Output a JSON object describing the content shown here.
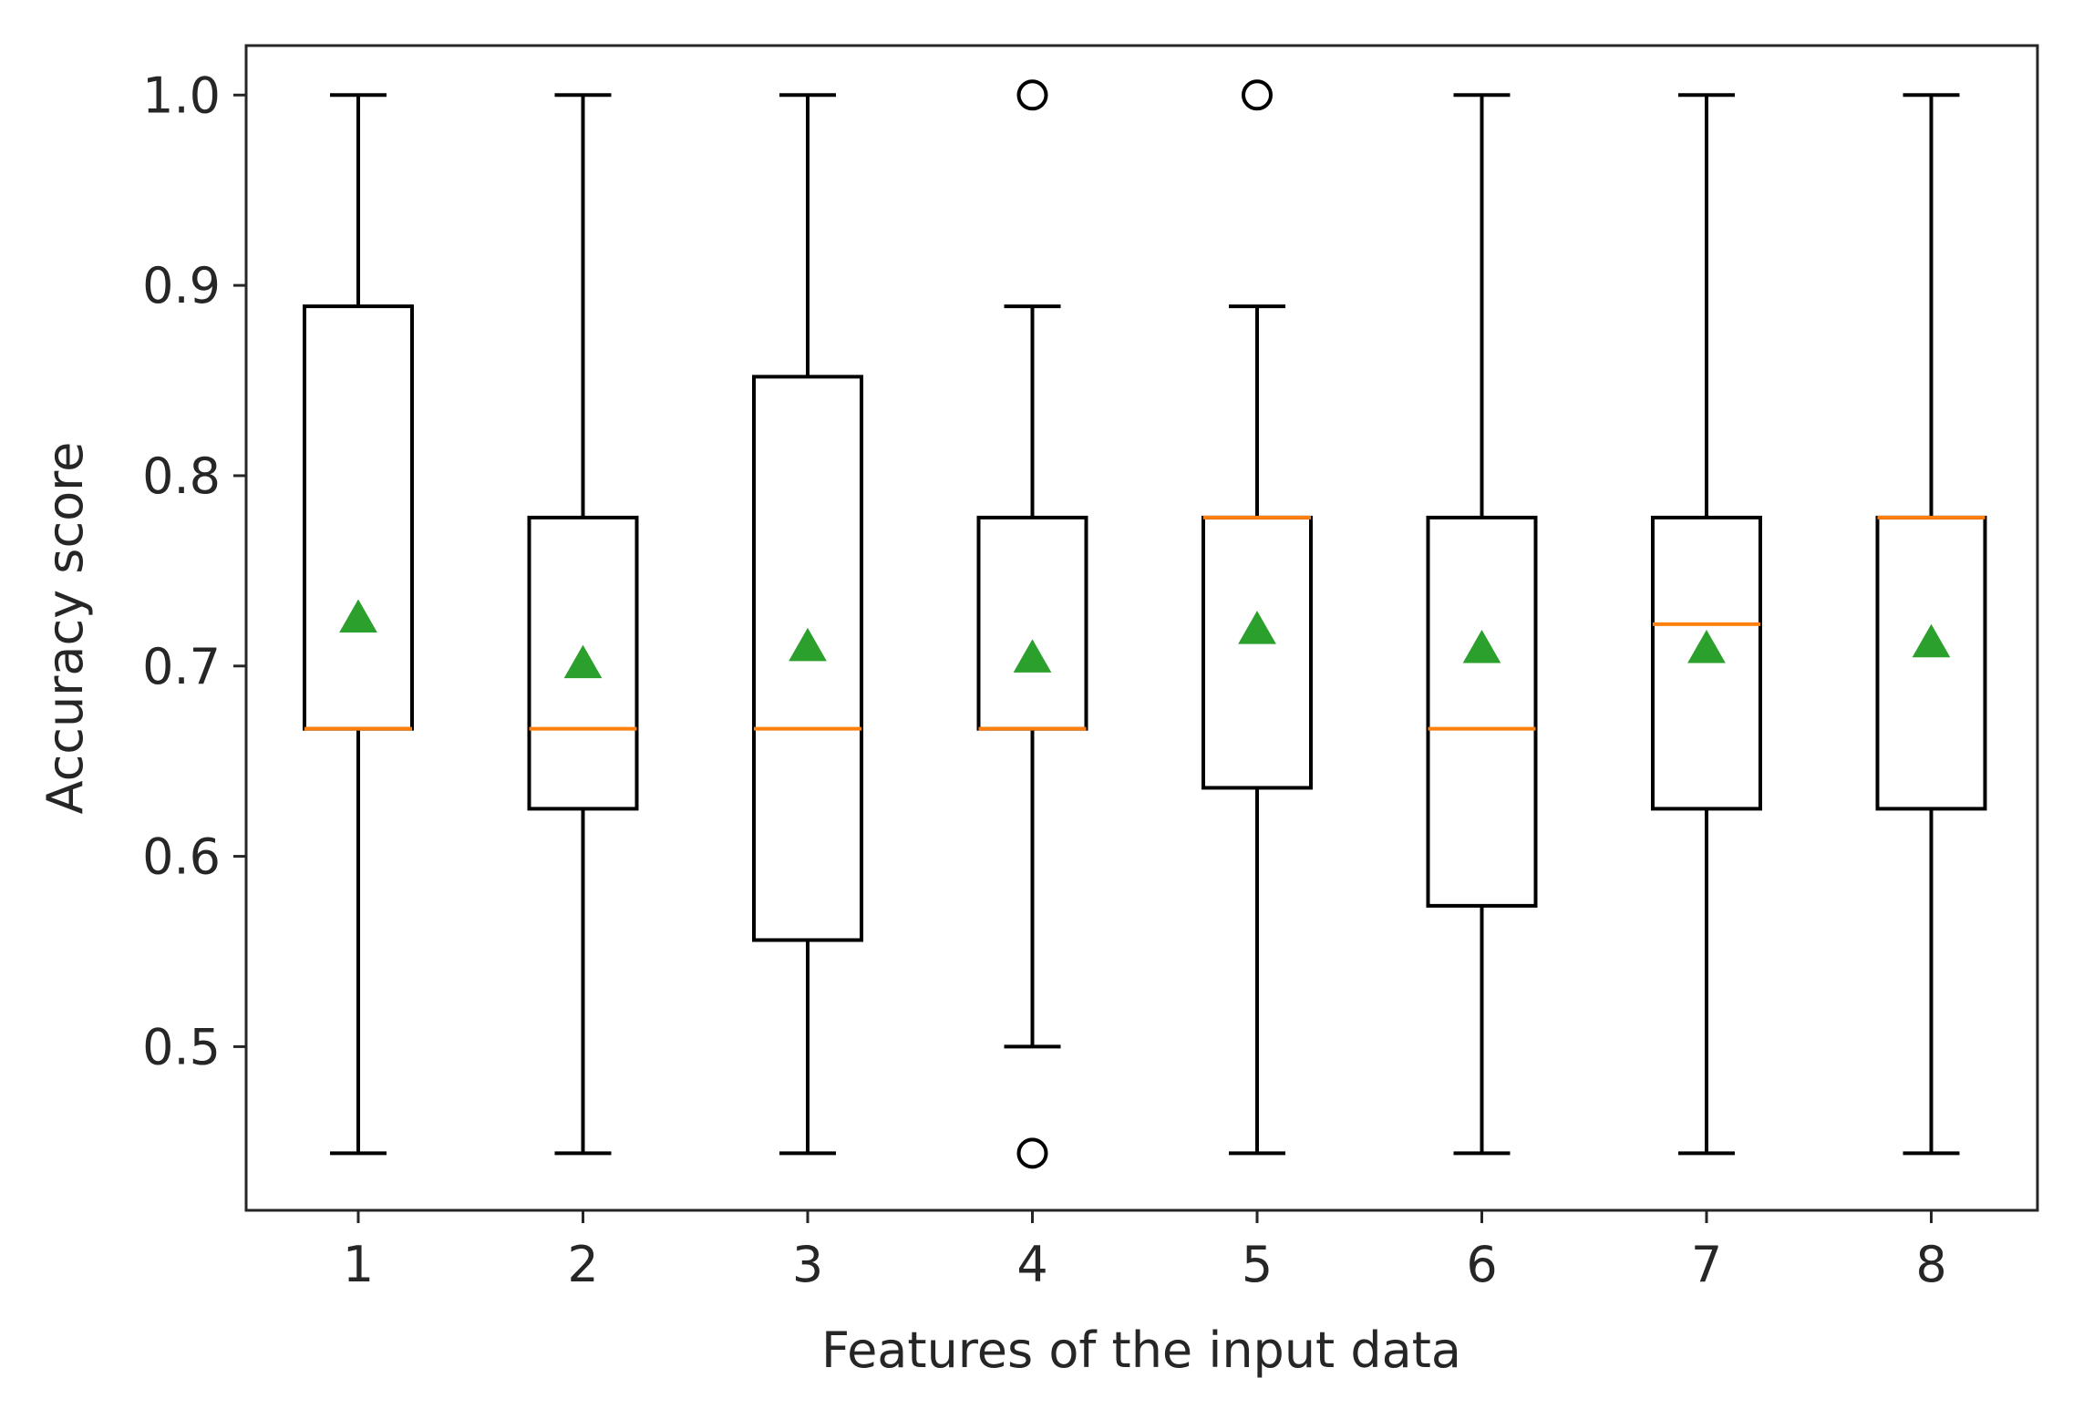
{
  "chart_data": {
    "type": "box",
    "title": "",
    "xlabel": "Features of the input data",
    "ylabel": "Accuracy score",
    "categories": [
      "1",
      "2",
      "3",
      "4",
      "5",
      "6",
      "7",
      "8"
    ],
    "ylim": [
      0.414,
      1.026
    ],
    "yticks": [
      0.5,
      0.6,
      0.7,
      0.8,
      0.9,
      1.0
    ],
    "ytick_labels": [
      "0.5",
      "0.6",
      "0.7",
      "0.8",
      "0.9",
      "1.0"
    ],
    "grid": false,
    "boxes": [
      {
        "label": "1",
        "whislo": 0.444,
        "q1": 0.667,
        "med": 0.667,
        "q3": 0.889,
        "whishi": 1.0,
        "mean": 0.725,
        "fliers": []
      },
      {
        "label": "2",
        "whislo": 0.444,
        "q1": 0.625,
        "med": 0.667,
        "q3": 0.778,
        "whishi": 1.0,
        "mean": 0.701,
        "fliers": []
      },
      {
        "label": "3",
        "whislo": 0.444,
        "q1": 0.556,
        "med": 0.667,
        "q3": 0.852,
        "whishi": 1.0,
        "mean": 0.71,
        "fliers": []
      },
      {
        "label": "4",
        "whislo": 0.5,
        "q1": 0.667,
        "med": 0.667,
        "q3": 0.778,
        "whishi": 0.889,
        "mean": 0.704,
        "fliers": [
          1.0,
          0.444
        ]
      },
      {
        "label": "5",
        "whislo": 0.444,
        "q1": 0.636,
        "med": 0.778,
        "q3": 0.778,
        "whishi": 0.889,
        "mean": 0.719,
        "fliers": [
          1.0
        ]
      },
      {
        "label": "6",
        "whislo": 0.444,
        "q1": 0.574,
        "med": 0.667,
        "q3": 0.778,
        "whishi": 1.0,
        "mean": 0.709,
        "fliers": []
      },
      {
        "label": "7",
        "whislo": 0.444,
        "q1": 0.625,
        "med": 0.722,
        "q3": 0.778,
        "whishi": 1.0,
        "mean": 0.709,
        "fliers": []
      },
      {
        "label": "8",
        "whislo": 0.444,
        "q1": 0.625,
        "med": 0.778,
        "q3": 0.778,
        "whishi": 1.0,
        "mean": 0.712,
        "fliers": []
      }
    ],
    "colors": {
      "box": "#000000",
      "median": "#ff7f0e",
      "mean_marker": "#2ca02c",
      "axes": "#262626"
    }
  }
}
